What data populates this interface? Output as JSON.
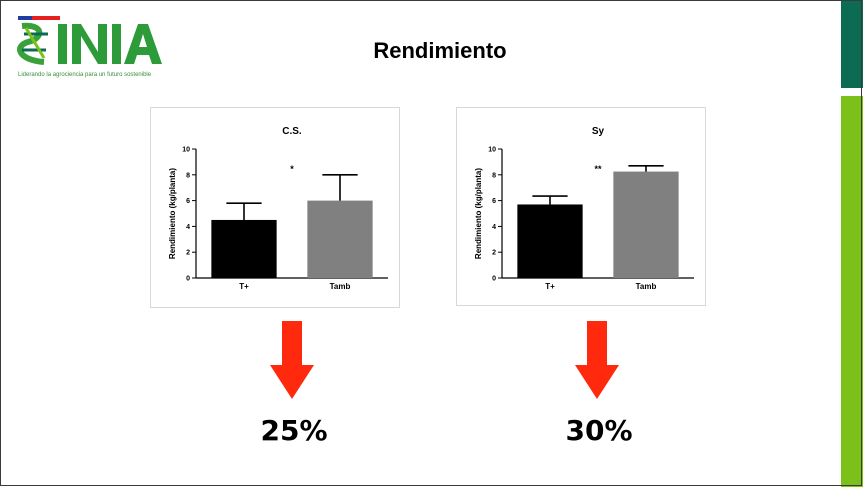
{
  "slide": {
    "title": "Rendimiento",
    "logo_text": "INIA",
    "logo_tagline": "Liderando la agrociencia para un futuro sostenible",
    "reductions": [
      "25%",
      "30%"
    ],
    "colors": {
      "accent_green": "#7cc11a",
      "accent_dark_green": "#0b6b53",
      "arrow_red": "#ff2a0d"
    }
  },
  "chart_data": [
    {
      "type": "bar",
      "title": "C.S.",
      "ylabel": "Rendimiento (kg/planta)",
      "xlabel": "",
      "categories": [
        "T+",
        "Tamb"
      ],
      "values": [
        4.5,
        6.0
      ],
      "errors": [
        1.3,
        2.0
      ],
      "bar_colors": [
        "#000000",
        "#808080"
      ],
      "ylim": [
        0,
        10
      ],
      "yticks": [
        "0",
        "2",
        "4",
        "6",
        "8",
        "10"
      ],
      "significance": "*",
      "grid": false
    },
    {
      "type": "bar",
      "title": "Sy",
      "ylabel": "Rendimiento (kg/planta)",
      "xlabel": "",
      "categories": [
        "T+",
        "Tamb"
      ],
      "values": [
        5.7,
        8.25
      ],
      "errors": [
        0.65,
        0.45
      ],
      "bar_colors": [
        "#000000",
        "#808080"
      ],
      "ylim": [
        0,
        10
      ],
      "yticks": [
        "0",
        "2",
        "4",
        "6",
        "8",
        "10"
      ],
      "significance": "**",
      "grid": false
    }
  ]
}
